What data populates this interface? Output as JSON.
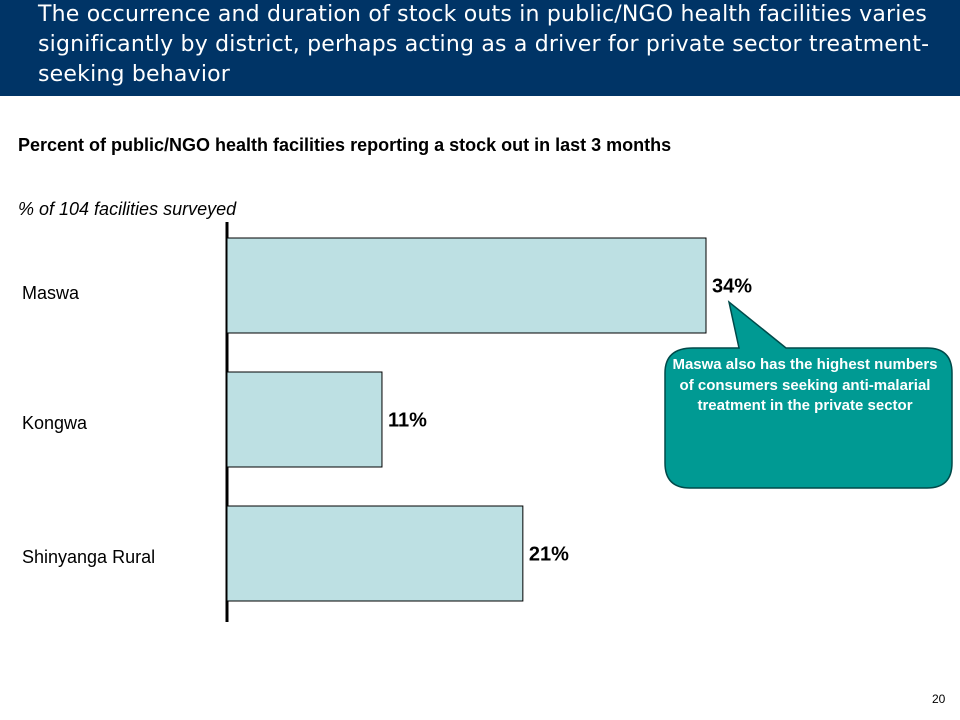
{
  "header": {
    "title": "The occurrence and duration of stock outs in public/NGO health facilities varies significantly by district, perhaps acting as a driver for private sector treatment-seeking behavior"
  },
  "colors": {
    "header_bg": "#003466",
    "bar_fill": "#bde0e3",
    "bar_stroke": "#000000",
    "callout_fill": "#009a93",
    "callout_stroke": "#004a4a"
  },
  "chart_data": {
    "type": "bar",
    "orientation": "horizontal",
    "title": "Percent of public/NGO health facilities reporting a stock out in last 3 months",
    "subtitle": "% of 104 facilities surveyed",
    "categories": [
      "Maswa",
      "Kongwa",
      "Shinyanga Rural"
    ],
    "values": [
      34,
      11,
      21
    ],
    "data_labels": [
      "34%",
      "11%",
      "21%"
    ],
    "unit": "%",
    "xlim": [
      0,
      36
    ],
    "grid": false,
    "legend": "none"
  },
  "callout": {
    "text": "Maswa also has the highest numbers of consumers seeking anti-malarial treatment in the private sector",
    "points_to": "Maswa"
  },
  "page_number": "20"
}
